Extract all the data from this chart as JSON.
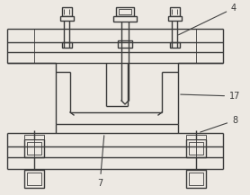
{
  "bg_color": "#ede9e3",
  "line_color": "#3a3a3a",
  "lw": 1.0,
  "tlw": 0.6,
  "fig_w": 2.78,
  "fig_h": 2.17,
  "dpi": 100
}
